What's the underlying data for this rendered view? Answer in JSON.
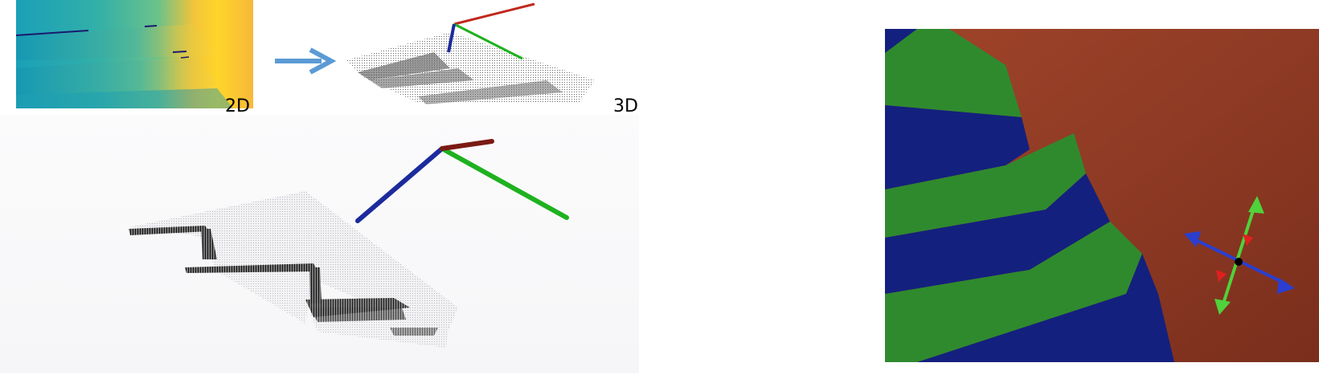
{
  "labels": {
    "depth_2d": "2D",
    "cloud_3d": "3D"
  },
  "colors": {
    "axis_x": "#c0281e",
    "axis_y": "#1fb11f",
    "axis_z": "#1c2a9c",
    "arrow": "#5b9bd5",
    "seg_wall": "#9a3b22",
    "seg_tread": "#2f8a2e",
    "seg_riser": "#14207e"
  },
  "icons": {
    "flow_arrow": "right-arrow-icon",
    "normal_marker": "crossed-double-arrow-icon"
  }
}
